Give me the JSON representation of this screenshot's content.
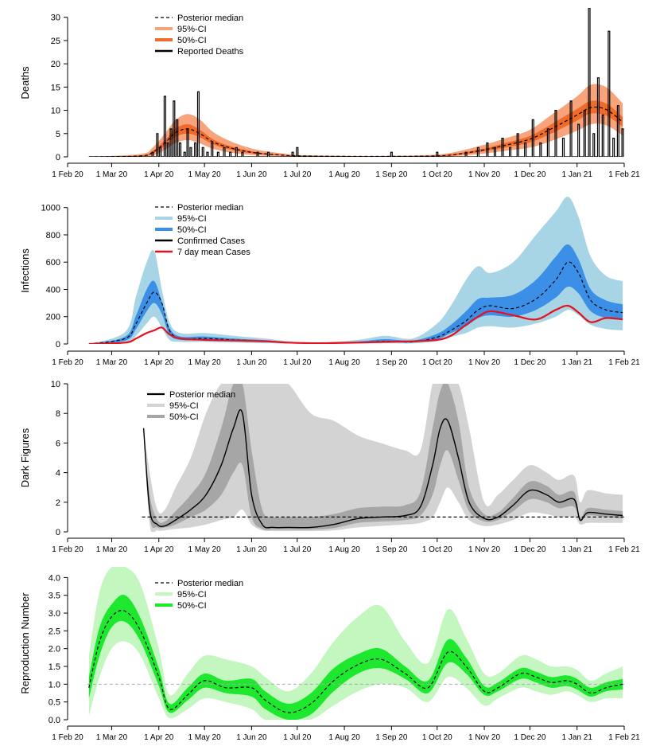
{
  "x_axis": {
    "tick_labels": [
      "1 Feb 20",
      "1 Mar 20",
      "1 Apr 20",
      "1 May 20",
      "1 Jun 20",
      "1 Jul 20",
      "1 Aug 20",
      "1 Sep 20",
      "1 Oct 20",
      "1 Nov 20",
      "1 Dec 20",
      "1 Jan 21",
      "1 Feb 21"
    ],
    "tick_days": [
      0,
      29,
      60,
      90,
      121,
      151,
      182,
      213,
      243,
      274,
      304,
      335,
      366
    ],
    "xlim": [
      0,
      366
    ]
  },
  "chart_data": [
    {
      "type": "line",
      "ylabel": "Deaths",
      "ylim": [
        0,
        32
      ],
      "yticks": [
        0,
        5,
        10,
        15,
        20,
        25,
        30
      ],
      "legend": [
        "Posterior median",
        "95%-CI",
        "50%-CI",
        "Reported Deaths"
      ],
      "colors": {
        "ci95": "#f7a47d",
        "ci50": "#f06a2a",
        "median": "#000000",
        "obs": "#000000"
      },
      "series": {
        "x": [
          "2020-02-15",
          "2020-03-20",
          "2020-03-28",
          "2020-04-05",
          "2020-04-12",
          "2020-04-20",
          "2020-04-28",
          "2020-05-06",
          "2020-05-15",
          "2020-05-25",
          "2020-06-05",
          "2020-06-20",
          "2020-07-01",
          "2020-08-01",
          "2020-09-01",
          "2020-10-01",
          "2020-10-15",
          "2020-11-01",
          "2020-11-15",
          "2020-12-01",
          "2020-12-15",
          "2021-01-01",
          "2021-01-10",
          "2021-01-20",
          "2021-01-31"
        ],
        "median": [
          0,
          0.2,
          1.0,
          3.0,
          5.2,
          6.0,
          5.0,
          3.3,
          2.2,
          1.4,
          0.8,
          0.4,
          0.2,
          0.1,
          0.1,
          0.2,
          0.6,
          1.5,
          2.5,
          3.8,
          6.0,
          9.0,
          10.6,
          10.2,
          7.5
        ],
        "ci95_low": [
          0,
          0,
          0.3,
          1.5,
          3.0,
          3.6,
          2.9,
          1.8,
          1.1,
          0.6,
          0.3,
          0.1,
          0,
          0,
          0,
          0,
          0.2,
          0.7,
          1.3,
          2.0,
          3.4,
          5.6,
          7.0,
          6.8,
          4.6
        ],
        "ci95_high": [
          0,
          0.6,
          2.0,
          5.0,
          7.9,
          9.2,
          8.0,
          5.5,
          3.8,
          2.5,
          1.5,
          0.8,
          0.4,
          0.2,
          0.2,
          0.5,
          1.2,
          2.6,
          4.0,
          5.8,
          9.0,
          13.0,
          15.5,
          15.0,
          11.5
        ],
        "ci50_low": [
          0,
          0.1,
          0.7,
          2.4,
          4.3,
          5.0,
          4.2,
          2.8,
          1.8,
          1.1,
          0.6,
          0.3,
          0.1,
          0.05,
          0.05,
          0.1,
          0.4,
          1.2,
          2.0,
          3.1,
          5.0,
          7.8,
          9.3,
          8.9,
          6.5
        ],
        "ci50_high": [
          0,
          0.3,
          1.3,
          3.6,
          6.1,
          7.0,
          5.8,
          3.9,
          2.6,
          1.7,
          1.0,
          0.5,
          0.3,
          0.15,
          0.15,
          0.3,
          0.8,
          1.8,
          3.0,
          4.5,
          7.0,
          10.3,
          12.0,
          11.5,
          8.6
        ],
        "observed_x": [
          "2020-03-28",
          "2020-03-31",
          "2020-04-02",
          "2020-04-05",
          "2020-04-07",
          "2020-04-09",
          "2020-04-11",
          "2020-04-13",
          "2020-04-15",
          "2020-04-18",
          "2020-04-20",
          "2020-04-22",
          "2020-04-25",
          "2020-04-27",
          "2020-04-30",
          "2020-05-03",
          "2020-05-06",
          "2020-05-10",
          "2020-05-14",
          "2020-05-18",
          "2020-05-22",
          "2020-05-26",
          "2020-05-30",
          "2020-06-05",
          "2020-06-12",
          "2020-06-28",
          "2020-07-01",
          "2020-09-01",
          "2020-10-01",
          "2020-10-20",
          "2020-10-28",
          "2020-11-03",
          "2020-11-08",
          "2020-11-13",
          "2020-11-18",
          "2020-11-23",
          "2020-11-28",
          "2020-12-03",
          "2020-12-08",
          "2020-12-13",
          "2020-12-18",
          "2020-12-23",
          "2020-12-28",
          "2021-01-02",
          "2021-01-06",
          "2021-01-09",
          "2021-01-12",
          "2021-01-15",
          "2021-01-18",
          "2021-01-22",
          "2021-01-25",
          "2021-01-28",
          "2021-01-31"
        ],
        "observed_y": [
          1,
          5,
          2,
          13,
          3,
          6,
          12,
          8,
          3,
          1,
          6,
          2,
          3,
          14,
          2,
          1,
          3,
          1,
          2,
          1,
          2,
          1,
          0,
          1,
          1,
          1,
          2,
          1,
          1,
          1,
          2,
          3,
          2,
          4,
          2,
          5,
          3,
          8,
          3,
          6,
          10,
          4,
          12,
          7,
          10,
          32,
          5,
          17,
          9,
          27,
          4,
          11,
          6
        ]
      }
    },
    {
      "type": "line",
      "ylabel": "Infections",
      "ylim": [
        0,
        1080
      ],
      "yticks": [
        0,
        200,
        400,
        600,
        800,
        1000
      ],
      "legend": [
        "Posterior median",
        "95%-CI",
        "50%-CI",
        "Confirmed Cases",
        "7 day mean Cases"
      ],
      "colors": {
        "ci95": "#a8d5e5",
        "ci50": "#3b8fe6",
        "median": "#000000",
        "obs": "#000000",
        "mean7": "#e8101c"
      },
      "series": {
        "x": [
          "2020-02-15",
          "2020-03-10",
          "2020-03-17",
          "2020-03-24",
          "2020-03-29",
          "2020-04-03",
          "2020-04-08",
          "2020-04-15",
          "2020-05-01",
          "2020-05-20",
          "2020-06-10",
          "2020-06-25",
          "2020-07-15",
          "2020-08-10",
          "2020-08-28",
          "2020-09-15",
          "2020-10-01",
          "2020-10-10",
          "2020-10-20",
          "2020-10-28",
          "2020-11-05",
          "2020-11-20",
          "2020-12-05",
          "2020-12-18",
          "2020-12-26",
          "2021-01-02",
          "2021-01-10",
          "2021-01-20",
          "2021-01-31"
        ],
        "median": [
          0,
          40,
          150,
          300,
          380,
          300,
          100,
          40,
          40,
          30,
          20,
          10,
          5,
          10,
          20,
          15,
          50,
          100,
          170,
          250,
          280,
          260,
          330,
          470,
          600,
          520,
          320,
          250,
          230
        ],
        "ci95_low": [
          0,
          10,
          60,
          150,
          200,
          120,
          30,
          15,
          15,
          10,
          5,
          3,
          1,
          3,
          5,
          4,
          20,
          50,
          80,
          120,
          130,
          120,
          150,
          200,
          250,
          210,
          140,
          110,
          100
        ],
        "ci95_high": [
          0,
          90,
          350,
          600,
          680,
          400,
          160,
          80,
          80,
          60,
          40,
          20,
          10,
          30,
          60,
          40,
          150,
          280,
          470,
          570,
          520,
          600,
          800,
          970,
          1080,
          930,
          640,
          500,
          460
        ],
        "ci50_low": [
          0,
          25,
          110,
          240,
          300,
          220,
          70,
          30,
          30,
          20,
          12,
          6,
          3,
          7,
          15,
          10,
          35,
          80,
          130,
          190,
          210,
          200,
          250,
          340,
          420,
          370,
          240,
          190,
          175
        ],
        "ci50_high": [
          0,
          55,
          210,
          400,
          460,
          310,
          120,
          55,
          55,
          40,
          28,
          14,
          7,
          18,
          35,
          25,
          75,
          140,
          240,
          330,
          340,
          360,
          470,
          640,
          730,
          620,
          400,
          320,
          290
        ],
        "mean7": [
          0,
          10,
          40,
          80,
          100,
          120,
          70,
          40,
          30,
          25,
          20,
          10,
          5,
          10,
          15,
          20,
          30,
          60,
          140,
          200,
          240,
          210,
          180,
          250,
          280,
          230,
          160,
          190,
          180
        ]
      }
    },
    {
      "type": "line",
      "ylabel": "Dark Figures",
      "ylim": [
        0,
        10
      ],
      "yticks": [
        0,
        2,
        4,
        6,
        8,
        10
      ],
      "reference_line": 1,
      "legend": [
        "Posterior median",
        "95%-CI",
        "50%-CI"
      ],
      "colors": {
        "ci95": "#d3d3d3",
        "ci50": "#a6a6a6",
        "median": "#000000"
      },
      "series": {
        "x": [
          "2020-03-22",
          "2020-03-26",
          "2020-03-31",
          "2020-04-05",
          "2020-04-12",
          "2020-04-22",
          "2020-05-02",
          "2020-05-12",
          "2020-05-20",
          "2020-05-26",
          "2020-06-01",
          "2020-06-08",
          "2020-06-15",
          "2020-06-25",
          "2020-07-10",
          "2020-07-25",
          "2020-08-10",
          "2020-08-25",
          "2020-09-10",
          "2020-09-20",
          "2020-09-28",
          "2020-10-03",
          "2020-10-08",
          "2020-10-15",
          "2020-10-22",
          "2020-11-01",
          "2020-11-10",
          "2020-11-20",
          "2020-12-01",
          "2020-12-12",
          "2020-12-20",
          "2020-12-30",
          "2021-01-03",
          "2021-01-08",
          "2021-01-20",
          "2021-01-31"
        ],
        "median": [
          7.0,
          1.5,
          0.5,
          0.4,
          0.8,
          1.5,
          2.5,
          4.5,
          7.0,
          8.0,
          2.5,
          0.5,
          0.3,
          0.3,
          0.3,
          0.5,
          0.9,
          1.0,
          1.1,
          1.7,
          4.5,
          7.0,
          7.5,
          5.0,
          2.0,
          0.9,
          1.0,
          1.8,
          2.8,
          2.5,
          2.0,
          2.2,
          0.8,
          1.3,
          1.2,
          1.1
        ],
        "ci95_low": [
          7.0,
          0.5,
          0.1,
          0.1,
          0.2,
          0.3,
          0.5,
          0.8,
          1.0,
          1.5,
          0.5,
          0.1,
          0.05,
          0.05,
          0.05,
          0.1,
          0.3,
          0.4,
          0.5,
          0.6,
          1.0,
          2.0,
          3.0,
          2.0,
          0.8,
          0.4,
          0.5,
          0.8,
          1.3,
          1.2,
          1.0,
          1.0,
          0.5,
          0.6,
          0.6,
          0.6
        ],
        "ci95_high": [
          7.0,
          4.0,
          1.5,
          1.5,
          3.0,
          5.0,
          8.0,
          10,
          10,
          10,
          10,
          10,
          10,
          10,
          8.0,
          7.5,
          6.5,
          6.0,
          5.5,
          5.5,
          10,
          10,
          10,
          10,
          7.0,
          2.0,
          2.5,
          3.5,
          4.5,
          4.0,
          3.5,
          3.8,
          2.0,
          2.8,
          2.6,
          2.5
        ],
        "ci50_low": [
          7.0,
          1.0,
          0.3,
          0.3,
          0.5,
          1.0,
          1.5,
          2.5,
          4.0,
          4.5,
          1.0,
          0.2,
          0.15,
          0.15,
          0.15,
          0.25,
          0.6,
          0.7,
          0.8,
          1.1,
          2.5,
          4.5,
          5.5,
          3.5,
          1.4,
          0.7,
          0.8,
          1.4,
          2.2,
          2.0,
          1.6,
          1.7,
          0.7,
          1.1,
          1.0,
          0.9
        ],
        "ci50_high": [
          7.0,
          2.5,
          0.8,
          0.7,
          1.4,
          2.5,
          4.0,
          7.0,
          10,
          10,
          5.5,
          1.5,
          1.0,
          1.0,
          1.0,
          1.2,
          1.6,
          1.7,
          1.8,
          2.7,
          7.0,
          9.5,
          10,
          7.5,
          3.0,
          1.2,
          1.3,
          2.3,
          3.4,
          3.1,
          2.5,
          2.7,
          1.0,
          1.6,
          1.5,
          1.4
        ]
      }
    },
    {
      "type": "line",
      "ylabel": "Reproduction Number",
      "ylim": [
        0,
        4.3
      ],
      "yticks": [
        0.0,
        0.5,
        1.0,
        1.5,
        2.0,
        2.5,
        3.0,
        3.5,
        4.0
      ],
      "reference_line": 1,
      "legend": [
        "Posterior median",
        "95%-CI",
        "50%-CI"
      ],
      "colors": {
        "ci95": "#c4f7c0",
        "ci50": "#1de82e",
        "median": "#000000"
      },
      "series": {
        "x": [
          "2020-02-15",
          "2020-02-22",
          "2020-03-01",
          "2020-03-10",
          "2020-03-20",
          "2020-04-01",
          "2020-04-08",
          "2020-04-20",
          "2020-05-01",
          "2020-05-15",
          "2020-06-01",
          "2020-06-10",
          "2020-06-25",
          "2020-07-10",
          "2020-07-25",
          "2020-08-10",
          "2020-08-25",
          "2020-09-10",
          "2020-09-25",
          "2020-10-08",
          "2020-10-20",
          "2020-11-01",
          "2020-11-10",
          "2020-11-25",
          "2020-12-05",
          "2020-12-15",
          "2020-12-25",
          "2021-01-01",
          "2021-01-10",
          "2021-01-20",
          "2021-01-31"
        ],
        "median": [
          0.9,
          2.2,
          2.9,
          3.05,
          2.5,
          1.2,
          0.3,
          0.7,
          1.1,
          0.9,
          0.9,
          0.55,
          0.2,
          0.45,
          1.1,
          1.55,
          1.7,
          1.3,
          0.9,
          1.9,
          1.5,
          0.8,
          0.9,
          1.3,
          1.2,
          1.05,
          1.1,
          1.0,
          0.75,
          0.9,
          1.0
        ],
        "ci95_low": [
          0.1,
          1.2,
          2.0,
          2.2,
          1.8,
          0.6,
          0.05,
          0.3,
          0.6,
          0.5,
          0.3,
          0.0,
          0.0,
          0.0,
          0.4,
          0.8,
          1.0,
          0.9,
          0.5,
          1.2,
          0.9,
          0.4,
          0.6,
          0.9,
          0.8,
          0.7,
          0.8,
          0.7,
          0.5,
          0.6,
          0.6
        ],
        "ci95_high": [
          1.8,
          3.6,
          4.3,
          4.3,
          3.8,
          2.0,
          0.7,
          1.3,
          1.8,
          1.7,
          1.5,
          1.2,
          0.8,
          1.3,
          2.2,
          2.9,
          3.2,
          2.2,
          1.6,
          3.1,
          2.3,
          1.3,
          1.3,
          1.8,
          1.7,
          1.5,
          1.5,
          1.4,
          1.1,
          1.3,
          1.5
        ],
        "ci50_low": [
          0.6,
          1.8,
          2.6,
          2.75,
          2.2,
          0.95,
          0.2,
          0.55,
          0.9,
          0.75,
          0.65,
          0.3,
          0.0,
          0.15,
          0.8,
          1.3,
          1.45,
          1.15,
          0.75,
          1.6,
          1.3,
          0.7,
          0.8,
          1.15,
          1.05,
          0.9,
          0.95,
          0.85,
          0.65,
          0.8,
          0.85
        ],
        "ci50_high": [
          1.2,
          2.6,
          3.25,
          3.5,
          2.85,
          1.45,
          0.45,
          0.9,
          1.3,
          1.1,
          1.15,
          0.8,
          0.45,
          0.75,
          1.45,
          1.85,
          2.0,
          1.5,
          1.1,
          2.25,
          1.75,
          0.95,
          1.05,
          1.45,
          1.35,
          1.2,
          1.25,
          1.15,
          0.9,
          1.05,
          1.15
        ]
      }
    }
  ]
}
